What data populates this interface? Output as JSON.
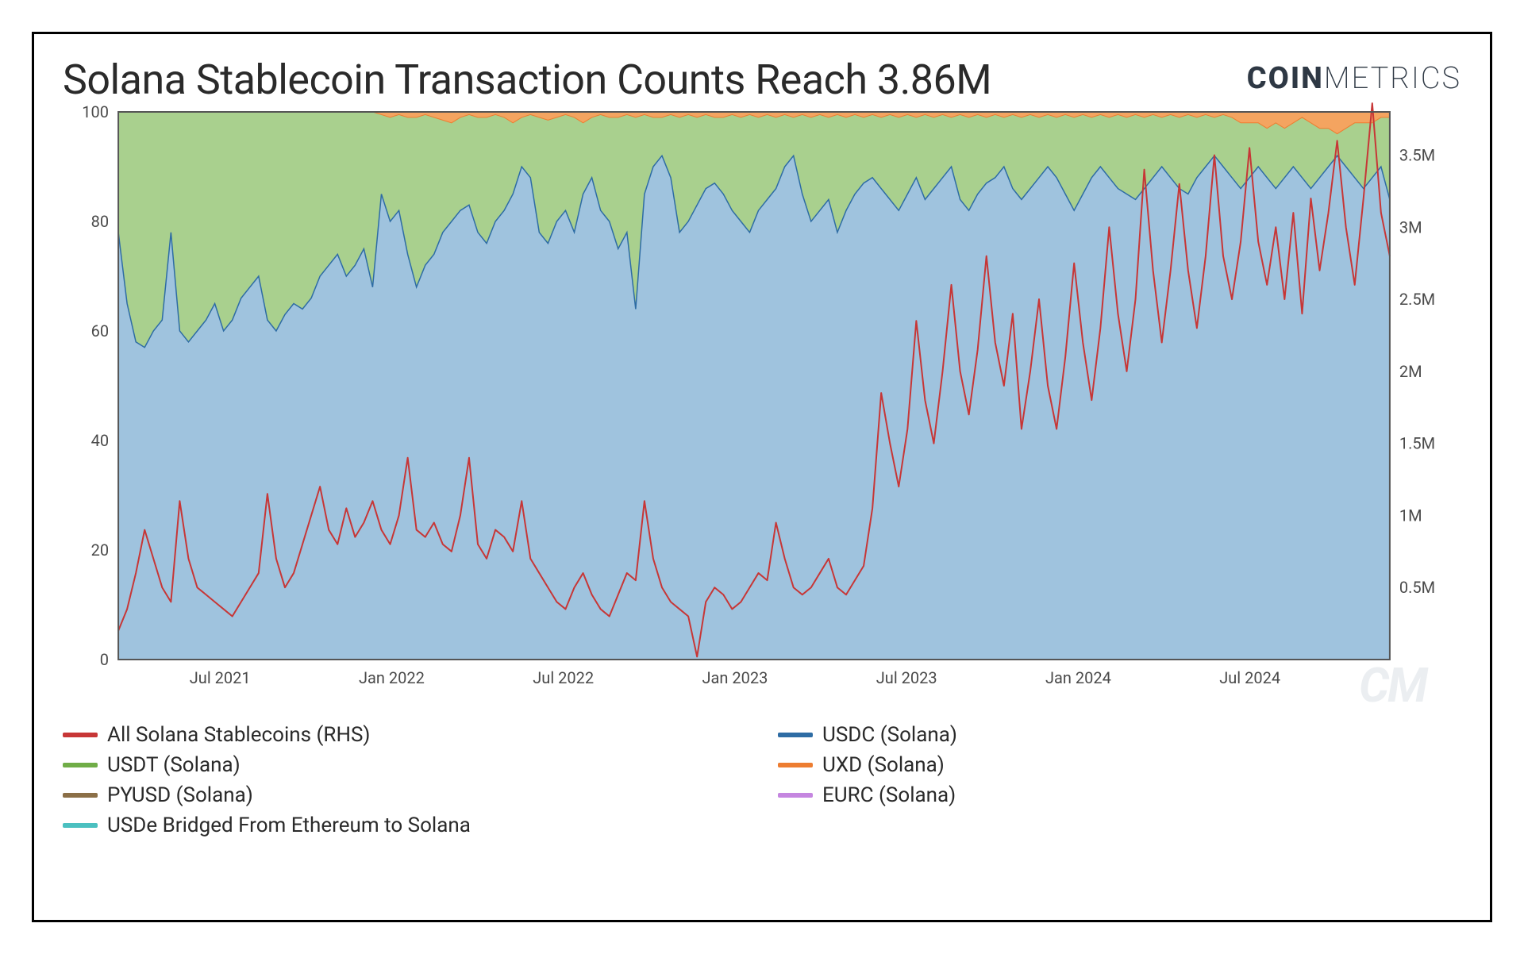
{
  "title": "Solana Stablecoin Transaction Counts Reach 3.86M",
  "brand_bold": "COIN",
  "brand_light": "METRICS",
  "watermark": "CM",
  "chart": {
    "type": "combined-stacked-area-and-line",
    "background_color": "#ffffff",
    "plot_border_color": "#555555",
    "plot_border_width": 2,
    "x_axis": {
      "ticks": [
        "Jul 2021",
        "Jan 2022",
        "Jul 2022",
        "Jan 2023",
        "Jul 2023",
        "Jan 2024",
        "Jul 2024"
      ],
      "fontsize": 20,
      "color": "#4a4a4a"
    },
    "y_axis_left": {
      "label": null,
      "min": 0,
      "max": 100,
      "ticks": [
        0,
        20,
        40,
        60,
        80,
        100
      ],
      "fontsize": 20,
      "color": "#4a4a4a",
      "unit": "percent"
    },
    "y_axis_right": {
      "label": null,
      "min": 0,
      "max": 3800000,
      "ticks": [
        "0.5M",
        "1M",
        "1.5M",
        "2M",
        "2.5M",
        "3M",
        "3.5M"
      ],
      "tick_values": [
        500000,
        1000000,
        1500000,
        2000000,
        2500000,
        3000000,
        3500000
      ],
      "fontsize": 20,
      "color": "#4a4a4a"
    },
    "stacked_series": [
      {
        "name": "USDC (Solana)",
        "color": "#9fc3de",
        "stroke": "#2e6ca4",
        "stroke_width": 1.5
      },
      {
        "name": "USDT (Solana)",
        "color": "#a9d08e",
        "stroke": "#70ad47",
        "stroke_width": 1
      },
      {
        "name": "UXD (Solana)",
        "color": "#f4a460",
        "stroke": "#ed7d31",
        "stroke_width": 1
      },
      {
        "name": "PYUSD (Solana)",
        "color": "#8b6f47",
        "stroke": "#8b6f47",
        "stroke_width": 1
      },
      {
        "name": "EURC (Solana)",
        "color": "#c586e0",
        "stroke": "#c586e0",
        "stroke_width": 1
      },
      {
        "name": "USDe Bridged From Ethereum to Solana",
        "color": "#4bc0c0",
        "stroke": "#4bc0c0",
        "stroke_width": 1
      }
    ],
    "usdc_share_approx": [
      78,
      65,
      58,
      57,
      60,
      62,
      78,
      60,
      58,
      60,
      62,
      65,
      60,
      62,
      66,
      68,
      70,
      62,
      60,
      63,
      65,
      64,
      66,
      70,
      72,
      74,
      70,
      72,
      75,
      68,
      85,
      80,
      82,
      74,
      68,
      72,
      74,
      78,
      80,
      82,
      83,
      78,
      76,
      80,
      82,
      85,
      90,
      88,
      78,
      76,
      80,
      82,
      78,
      85,
      88,
      82,
      80,
      75,
      78,
      64,
      85,
      90,
      92,
      88,
      78,
      80,
      83,
      86,
      87,
      85,
      82,
      80,
      78,
      82,
      84,
      86,
      90,
      92,
      85,
      80,
      82,
      84,
      78,
      82,
      85,
      87,
      88,
      86,
      84,
      82,
      85,
      88,
      84,
      86,
      88,
      90,
      84,
      82,
      85,
      87,
      88,
      90,
      86,
      84,
      86,
      88,
      90,
      88,
      85,
      82,
      85,
      88,
      90,
      88,
      86,
      85,
      84,
      86,
      88,
      90,
      88,
      86,
      85,
      88,
      90,
      92,
      90,
      88,
      86,
      88,
      90,
      88,
      86,
      88,
      90,
      88,
      86,
      88,
      90,
      92,
      90,
      88,
      86,
      88,
      90,
      84
    ],
    "uxd_share_approx": [
      0,
      0,
      0,
      0,
      0,
      0,
      0,
      0,
      0,
      0,
      0,
      0,
      0,
      0,
      0,
      0,
      0,
      0,
      0,
      0,
      0,
      0,
      0,
      0,
      0,
      0,
      0,
      0,
      0,
      0,
      0.5,
      1,
      0.5,
      1,
      1,
      0.5,
      1,
      1.5,
      2,
      1,
      0.5,
      1,
      1,
      0.5,
      1,
      2,
      1,
      0.5,
      1,
      1.5,
      1,
      0.5,
      1,
      2,
      1,
      0.5,
      1,
      1,
      0.5,
      1,
      0.5,
      1,
      1,
      0.5,
      1,
      0.5,
      1,
      0.5,
      1,
      1,
      0.5,
      1,
      0.5,
      1,
      0.5,
      1,
      0.5,
      1,
      0.5,
      1,
      0.5,
      1,
      0.5,
      1,
      0.5,
      1,
      0.5,
      1,
      0.5,
      1,
      0.5,
      1,
      0.5,
      1,
      0.5,
      1,
      0.5,
      1,
      0.5,
      1,
      0.5,
      1,
      0.5,
      1,
      0.5,
      1,
      0.5,
      1,
      0.5,
      1,
      0.5,
      1,
      0.5,
      1,
      0.5,
      1,
      0.5,
      1,
      0.5,
      1,
      0.5,
      1,
      0.5,
      1,
      0.5,
      1,
      0.5,
      1,
      2,
      2,
      2,
      3,
      2,
      3,
      2,
      1,
      2,
      3,
      3,
      4,
      3,
      2,
      2,
      2,
      1,
      1
    ],
    "line_series": {
      "name": "All Solana Stablecoins (RHS)",
      "color": "#c73636",
      "stroke_width": 2,
      "values_millions": [
        0.2,
        0.35,
        0.6,
        0.9,
        0.7,
        0.5,
        0.4,
        1.1,
        0.7,
        0.5,
        0.45,
        0.4,
        0.35,
        0.3,
        0.4,
        0.5,
        0.6,
        1.15,
        0.7,
        0.5,
        0.6,
        0.8,
        1.0,
        1.2,
        0.9,
        0.8,
        1.05,
        0.85,
        0.95,
        1.1,
        0.9,
        0.8,
        1.0,
        1.4,
        0.9,
        0.85,
        0.95,
        0.8,
        0.75,
        1.0,
        1.4,
        0.8,
        0.7,
        0.9,
        0.85,
        0.75,
        1.1,
        0.7,
        0.6,
        0.5,
        0.4,
        0.35,
        0.5,
        0.6,
        0.45,
        0.35,
        0.3,
        0.45,
        0.6,
        0.55,
        1.1,
        0.7,
        0.5,
        0.4,
        0.35,
        0.3,
        0.02,
        0.4,
        0.5,
        0.45,
        0.35,
        0.4,
        0.5,
        0.6,
        0.55,
        0.95,
        0.7,
        0.5,
        0.45,
        0.5,
        0.6,
        0.7,
        0.5,
        0.45,
        0.55,
        0.65,
        1.05,
        1.85,
        1.5,
        1.2,
        1.6,
        2.35,
        1.8,
        1.5,
        2.0,
        2.6,
        2.0,
        1.7,
        2.15,
        2.8,
        2.2,
        1.9,
        2.4,
        1.6,
        2.0,
        2.5,
        1.9,
        1.6,
        2.1,
        2.75,
        2.2,
        1.8,
        2.3,
        3.0,
        2.4,
        2.0,
        2.5,
        3.4,
        2.7,
        2.2,
        2.7,
        3.3,
        2.7,
        2.3,
        2.8,
        3.5,
        2.8,
        2.5,
        2.9,
        3.55,
        2.9,
        2.6,
        3.0,
        2.5,
        3.1,
        2.4,
        3.2,
        2.7,
        3.1,
        3.6,
        3.0,
        2.6,
        3.2,
        3.86,
        3.1,
        2.8
      ]
    }
  },
  "legend": {
    "fontsize": 26,
    "items": [
      {
        "label": "All Solana Stablecoins (RHS)",
        "color": "#c73636"
      },
      {
        "label": "USDC (Solana)",
        "color": "#2e6ca4"
      },
      {
        "label": "USDT (Solana)",
        "color": "#70ad47"
      },
      {
        "label": "UXD (Solana)",
        "color": "#ed7d31"
      },
      {
        "label": "PYUSD (Solana)",
        "color": "#8b6f47"
      },
      {
        "label": "EURC (Solana)",
        "color": "#c586e0"
      },
      {
        "label": "USDe Bridged From Ethereum to Solana",
        "color": "#4bc0c0"
      }
    ]
  }
}
